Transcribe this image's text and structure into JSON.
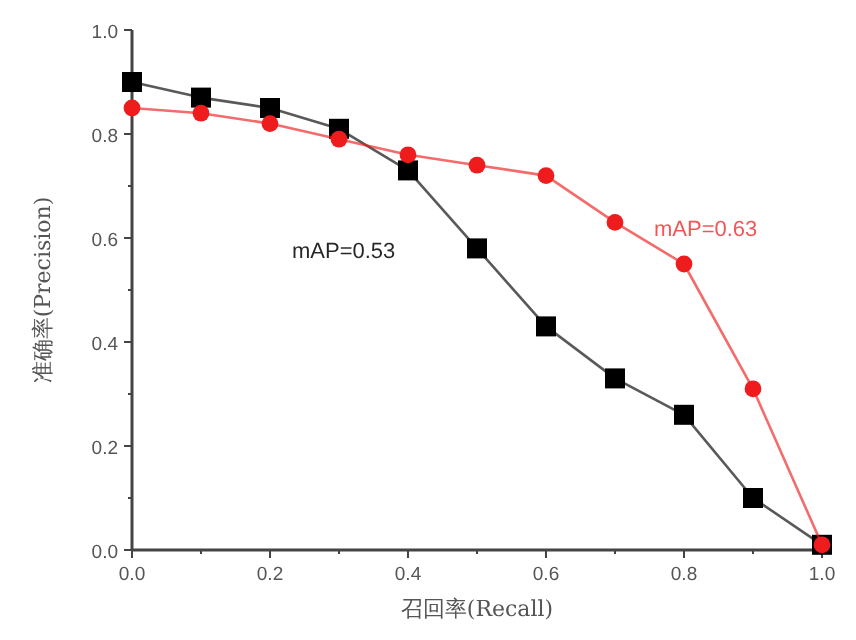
{
  "chart_data": {
    "type": "line",
    "xlabel": "召回率(Recall)",
    "ylabel": "准确率(Precision)",
    "x": [
      0.0,
      0.1,
      0.2,
      0.3,
      0.4,
      0.5,
      0.6,
      0.7,
      0.8,
      0.9,
      1.0
    ],
    "series": [
      {
        "color": "#000000",
        "marker": "square",
        "values": [
          0.9,
          0.87,
          0.85,
          0.81,
          0.73,
          0.58,
          0.43,
          0.33,
          0.26,
          0.1,
          0.01
        ]
      },
      {
        "color": "#ee1c1c",
        "marker": "circle",
        "values": [
          0.85,
          0.84,
          0.82,
          0.79,
          0.76,
          0.74,
          0.72,
          0.63,
          0.55,
          0.31,
          0.01
        ]
      }
    ],
    "xlim": [
      0,
      1
    ],
    "ylim": [
      0,
      1
    ],
    "xticks": [
      {
        "value": 0,
        "label": "0.0"
      },
      {
        "value": 0.2,
        "label": "0.2"
      },
      {
        "value": 0.4,
        "label": "0.4"
      },
      {
        "value": 0.6,
        "label": "0.6"
      },
      {
        "value": 0.8,
        "label": "0.8"
      },
      {
        "value": 1,
        "label": "1.0"
      }
    ],
    "yticks": [
      {
        "value": 0,
        "label": "0.0"
      },
      {
        "value": 0.2,
        "label": "0.2"
      },
      {
        "value": 0.4,
        "label": "0.4"
      },
      {
        "value": 0.6,
        "label": "0.6"
      },
      {
        "value": 0.8,
        "label": "0.8"
      },
      {
        "value": 1,
        "label": "1.0"
      }
    ],
    "annotations": [
      "mAP=0.53",
      "mAP=0.63"
    ]
  }
}
